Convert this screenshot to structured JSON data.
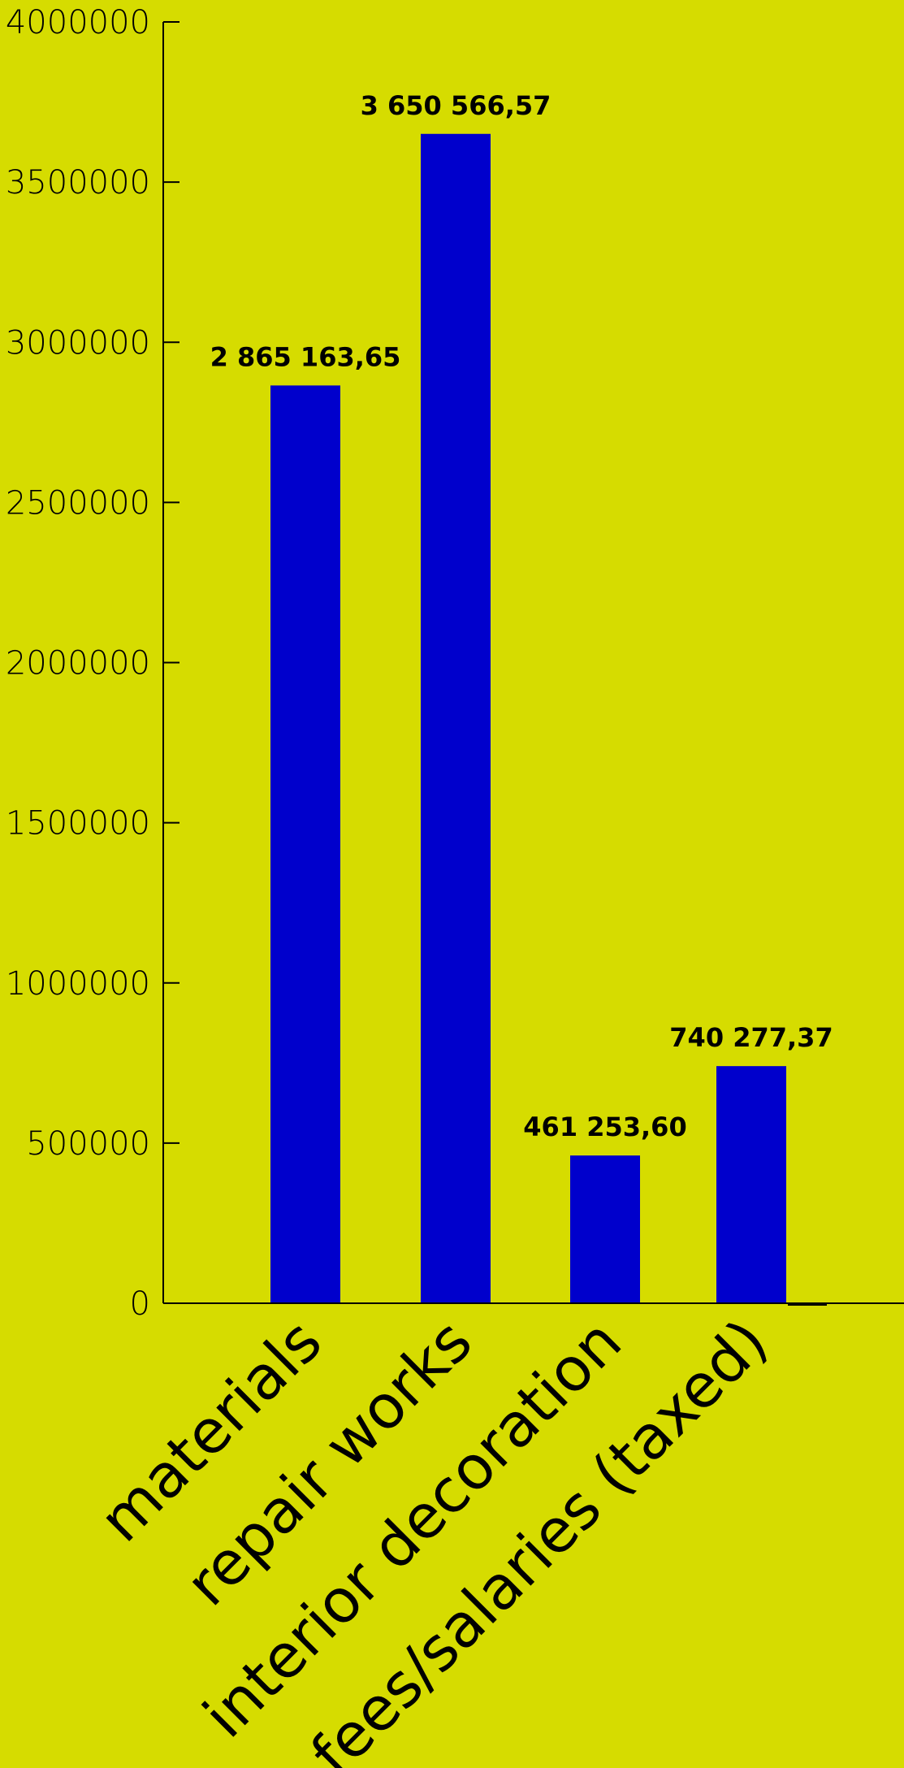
{
  "colors": {
    "background": "#d6dc00",
    "bar": "#0000cc",
    "axis": "#000000",
    "text": "#000000"
  },
  "chart_data": {
    "type": "bar",
    "categories": [
      "materials",
      "repair works",
      "interior decoration",
      "fees/salaries (taxed)"
    ],
    "values": [
      2865163.65,
      3650566.57,
      461253.6,
      740277.37
    ],
    "data_labels": [
      "2 865 163,65",
      "3 650 566,57",
      "461 253,60",
      "740 277,37"
    ],
    "ylim": [
      0,
      4000000
    ],
    "yticks": [
      0,
      500000,
      1000000,
      1500000,
      2000000,
      2500000,
      3000000,
      3500000,
      4000000
    ],
    "ytick_labels": [
      "0",
      "500000",
      "1000000",
      "1500000",
      "2000000",
      "2500000",
      "3000000",
      "3500000",
      "4000000"
    ],
    "grid": false,
    "legend": "none"
  }
}
